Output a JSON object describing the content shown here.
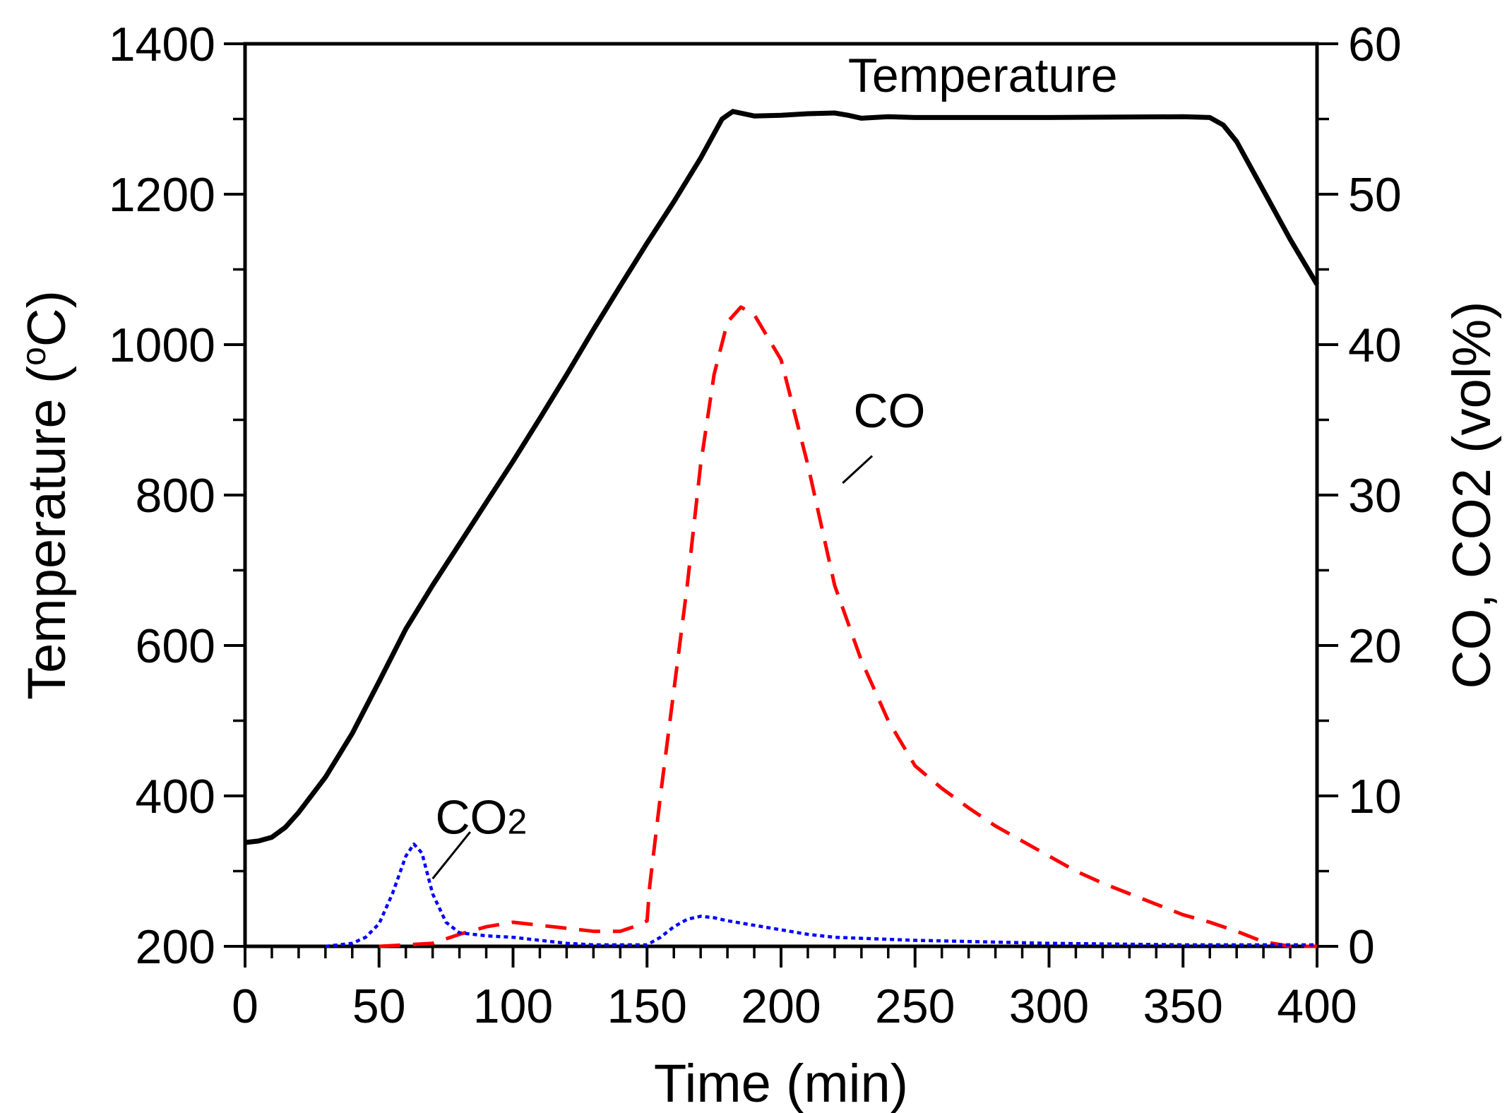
{
  "chart_data": {
    "type": "line",
    "title": "",
    "xlabel": "Time (min)",
    "ylabel_left": "Temperature (°C)",
    "ylabel_left_parts": [
      "Temperature (",
      "o",
      "C)"
    ],
    "ylabel_right": "CO, CO2 (vol%)",
    "ylabel_right_parts": [
      "CO, CO",
      "2",
      " (vol%)"
    ],
    "xlim": [
      0,
      400
    ],
    "ylim_left": [
      200,
      1400
    ],
    "ylim_right": [
      0,
      60
    ],
    "x_ticks": [
      0,
      50,
      100,
      150,
      200,
      250,
      300,
      350,
      400
    ],
    "x_tick_labels": [
      "0",
      "50",
      "100",
      "150",
      "200",
      "250",
      "300",
      "350",
      "400"
    ],
    "y_left_ticks": [
      200,
      400,
      600,
      800,
      1000,
      1200,
      1400
    ],
    "y_left_tick_labels": [
      "200",
      "400",
      "600",
      "800",
      "1000",
      "1200",
      "1400"
    ],
    "y_right_ticks": [
      0,
      10,
      20,
      30,
      40,
      50,
      60
    ],
    "y_right_tick_labels": [
      "0",
      "10",
      "20",
      "30",
      "40",
      "50",
      "60"
    ],
    "grid": false,
    "legend": "none (inline labels)",
    "series": [
      {
        "name": "Temperature",
        "label": "Temperature",
        "axis": "left",
        "color": "#000000",
        "style": "solid",
        "x": [
          0,
          5,
          10,
          15,
          20,
          30,
          40,
          50,
          60,
          70,
          80,
          90,
          100,
          110,
          120,
          130,
          140,
          150,
          160,
          170,
          178,
          182,
          190,
          200,
          210,
          220,
          225,
          230,
          240,
          250,
          300,
          350,
          360,
          365,
          370,
          380,
          390,
          400
        ],
        "y": [
          338,
          340,
          345,
          358,
          378,
          425,
          483,
          552,
          622,
          680,
          735,
          790,
          845,
          902,
          960,
          1020,
          1078,
          1135,
          1190,
          1248,
          1300,
          1310,
          1304,
          1305,
          1307,
          1308,
          1305,
          1301,
          1303,
          1302,
          1302,
          1303,
          1302,
          1292,
          1270,
          1205,
          1140,
          1080
        ]
      },
      {
        "name": "CO",
        "label": "CO",
        "axis": "right",
        "color": "#ff0000",
        "style": "dashed",
        "x": [
          50,
          60,
          70,
          80,
          90,
          100,
          110,
          120,
          130,
          140,
          145,
          150,
          151,
          155,
          160,
          165,
          170,
          175,
          180,
          185,
          190,
          200,
          210,
          220,
          230,
          240,
          250,
          260,
          270,
          280,
          290,
          300,
          310,
          320,
          330,
          340,
          350,
          360,
          370,
          380,
          390,
          400
        ],
        "y": [
          0,
          0.1,
          0.2,
          0.8,
          1.3,
          1.6,
          1.4,
          1.2,
          1.0,
          1.0,
          1.3,
          1.7,
          4.0,
          10.0,
          17.0,
          24.0,
          32.0,
          38.0,
          41.5,
          42.5,
          42.0,
          39.0,
          32.0,
          24.0,
          19.0,
          15.0,
          12.0,
          10.5,
          9.2,
          8.0,
          7.0,
          6.0,
          5.0,
          4.2,
          3.5,
          2.8,
          2.1,
          1.6,
          1.0,
          0.3,
          0,
          0
        ]
      },
      {
        "name": "CO2",
        "label_parts": [
          "CO",
          "2"
        ],
        "axis": "right",
        "color": "#0000ff",
        "style": "dotted",
        "x": [
          30,
          40,
          45,
          50,
          55,
          60,
          63,
          66,
          70,
          75,
          80,
          90,
          100,
          110,
          120,
          130,
          140,
          150,
          155,
          160,
          165,
          170,
          175,
          180,
          190,
          200,
          210,
          220,
          250,
          300,
          350,
          400
        ],
        "y": [
          0,
          0.2,
          0.6,
          1.5,
          3.5,
          6.0,
          6.8,
          6.2,
          3.5,
          1.6,
          0.9,
          0.7,
          0.6,
          0.4,
          0.2,
          0.1,
          0.1,
          0.1,
          0.6,
          1.3,
          1.8,
          2.0,
          1.9,
          1.7,
          1.4,
          1.1,
          0.8,
          0.6,
          0.4,
          0.2,
          0.1,
          0.1
        ]
      }
    ],
    "annotations": [
      {
        "series": "Temperature",
        "text": "Temperature",
        "leader_line": false
      },
      {
        "series": "CO",
        "text": "CO",
        "leader_line": true
      },
      {
        "series": "CO2",
        "text": "CO2",
        "leader_line": true
      }
    ]
  }
}
